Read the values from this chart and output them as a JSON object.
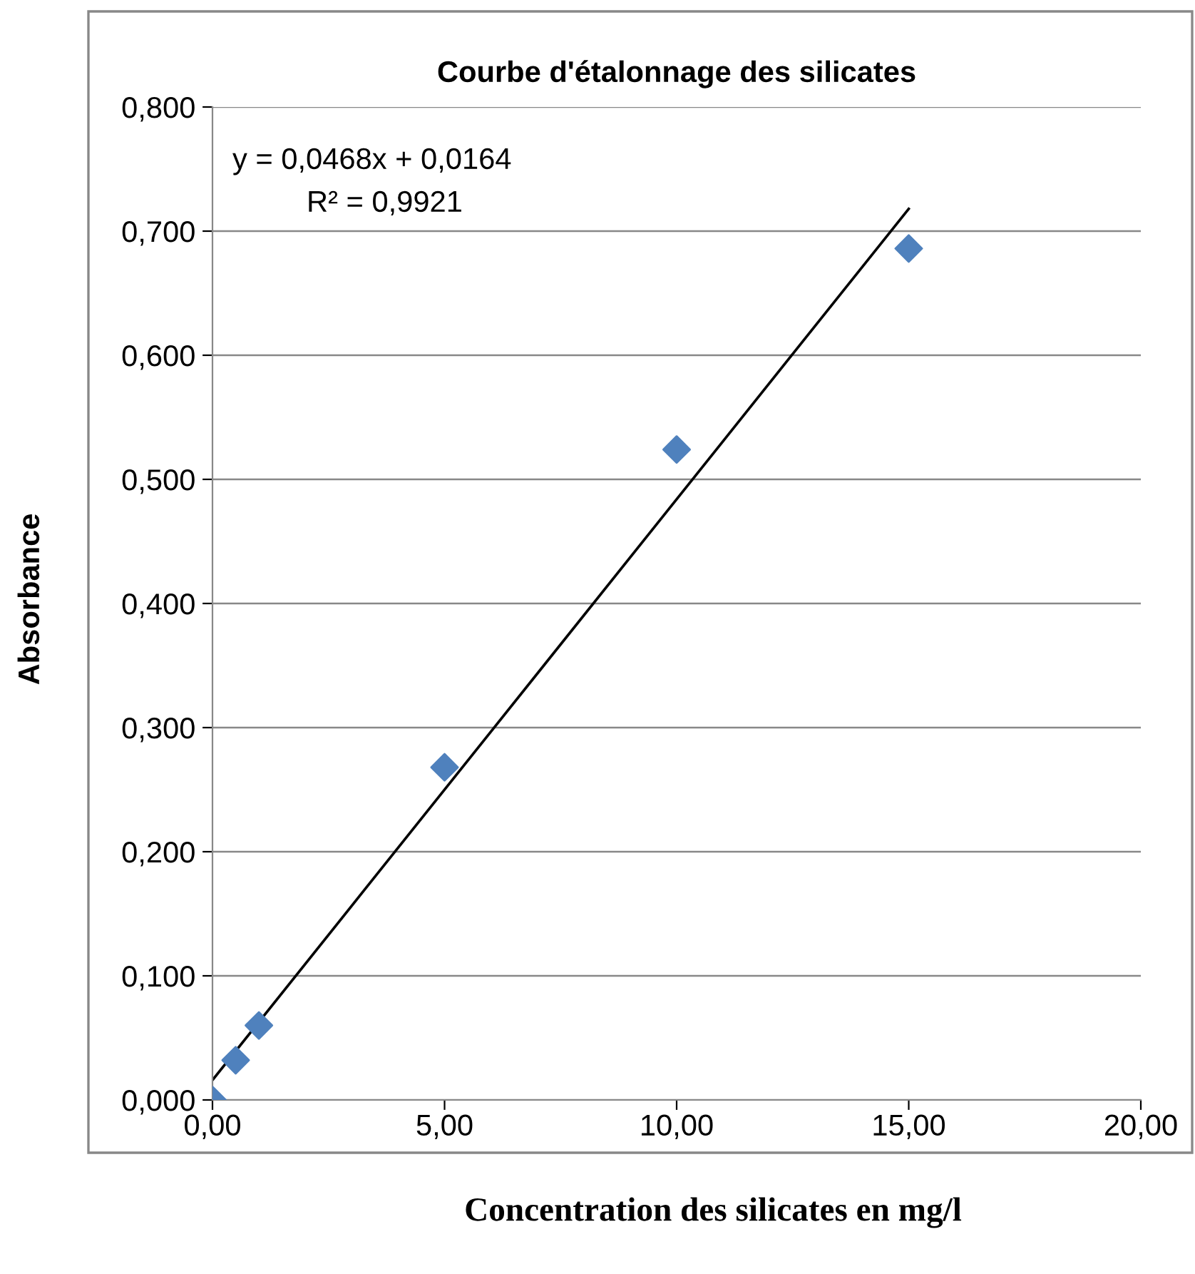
{
  "chart_data": {
    "type": "scatter",
    "title": "Courbe d'étalonnage des silicates",
    "xlabel": "Concentration des silicates en mg/l",
    "ylabel": "Absorbance",
    "annotations": [
      "y = 0,0468x + 0,0164",
      "R² = 0,9921"
    ],
    "x": [
      0,
      0.5,
      1,
      5,
      10,
      15
    ],
    "series": [
      {
        "color": "#4f81bd",
        "marker": "diamond",
        "values": [
          0.0,
          0.032,
          0.06,
          0.268,
          0.524,
          0.686
        ]
      },
      {
        "type": "line",
        "color": "#000000",
        "marker": "none",
        "x": [
          0,
          15
        ],
        "values": [
          0.016,
          0.718
        ]
      }
    ],
    "grid": "y",
    "legend": false,
    "xlim": [
      0,
      20
    ],
    "ylim": [
      0,
      0.8
    ],
    "xticks": [
      {
        "value": 0,
        "label": "0,00"
      },
      {
        "value": 5,
        "label": "5,00"
      },
      {
        "value": 10,
        "label": "10,00"
      },
      {
        "value": 15,
        "label": "15,00"
      },
      {
        "value": 20,
        "label": "20,00"
      }
    ],
    "yticks": [
      {
        "value": 0,
        "label": "0,000"
      },
      {
        "value": 0.1,
        "label": "0,100"
      },
      {
        "value": 0.2,
        "label": "0,200"
      },
      {
        "value": 0.3,
        "label": "0,300"
      },
      {
        "value": 0.4,
        "label": "0,400"
      },
      {
        "value": 0.5,
        "label": "0,500"
      },
      {
        "value": 0.6,
        "label": "0,600"
      },
      {
        "value": 0.7,
        "label": "0,700"
      },
      {
        "value": 0.8,
        "label": "0,800"
      }
    ]
  }
}
